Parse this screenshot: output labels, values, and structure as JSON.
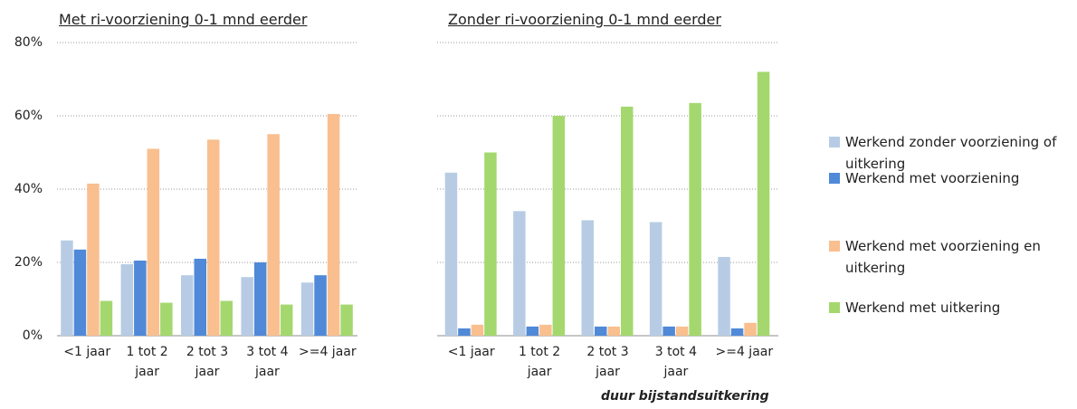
{
  "chart_data": [
    {
      "type": "bar",
      "title": "Met ri-voorziening 0-1 mnd eerder",
      "categories": [
        "<1 jaar",
        "1 tot 2 jaar",
        "2 tot 3 jaar",
        "3 tot 4 jaar",
        ">=4 jaar"
      ],
      "series": [
        {
          "name": "Werkend zonder voorziening of uitkering",
          "color": "#b7cce4",
          "values": [
            26,
            19.5,
            16.5,
            16,
            14.5
          ]
        },
        {
          "name": "Werkend met voorziening",
          "color": "#4f89d8",
          "values": [
            23.5,
            20.5,
            21,
            20,
            16.5
          ]
        },
        {
          "name": "Werkend met voorziening en uitkering",
          "color": "#f9bf8f",
          "values": [
            41.5,
            51,
            53.5,
            55,
            60.5
          ]
        },
        {
          "name": "Werkend met uitkering",
          "color": "#a4d86e",
          "values": [
            9.5,
            9,
            9.5,
            8.5,
            8.5
          ]
        }
      ],
      "ylim": [
        0,
        80
      ],
      "yticks": [
        {
          "value": 0,
          "label": "0%"
        },
        {
          "value": 20,
          "label": "20%"
        },
        {
          "value": 40,
          "label": "40%"
        },
        {
          "value": 60,
          "label": "60%"
        },
        {
          "value": 80,
          "label": "80%"
        }
      ],
      "grid": true
    },
    {
      "type": "bar",
      "title": "Zonder ri-voorziening 0-1 mnd eerder",
      "x_label": "duur bijstandsuitkering",
      "categories": [
        "<1 jaar",
        "1 tot 2 jaar",
        "2 tot 3 jaar",
        "3 tot 4 jaar",
        ">=4 jaar"
      ],
      "series": [
        {
          "color": "#b7cce4",
          "values": [
            44.5,
            34,
            31.5,
            31,
            21.5
          ]
        },
        {
          "color": "#4f89d8",
          "values": [
            2,
            2.5,
            2.5,
            2.5,
            2
          ]
        },
        {
          "color": "#f9bf8f",
          "values": [
            3,
            3,
            2.5,
            2.5,
            3.5
          ]
        },
        {
          "color": "#a4d86e",
          "values": [
            50,
            60,
            62.5,
            63.5,
            72
          ]
        }
      ],
      "ylim": [
        0,
        80
      ],
      "yticks": [
        0,
        20,
        40,
        60,
        80
      ],
      "grid": true
    }
  ]
}
